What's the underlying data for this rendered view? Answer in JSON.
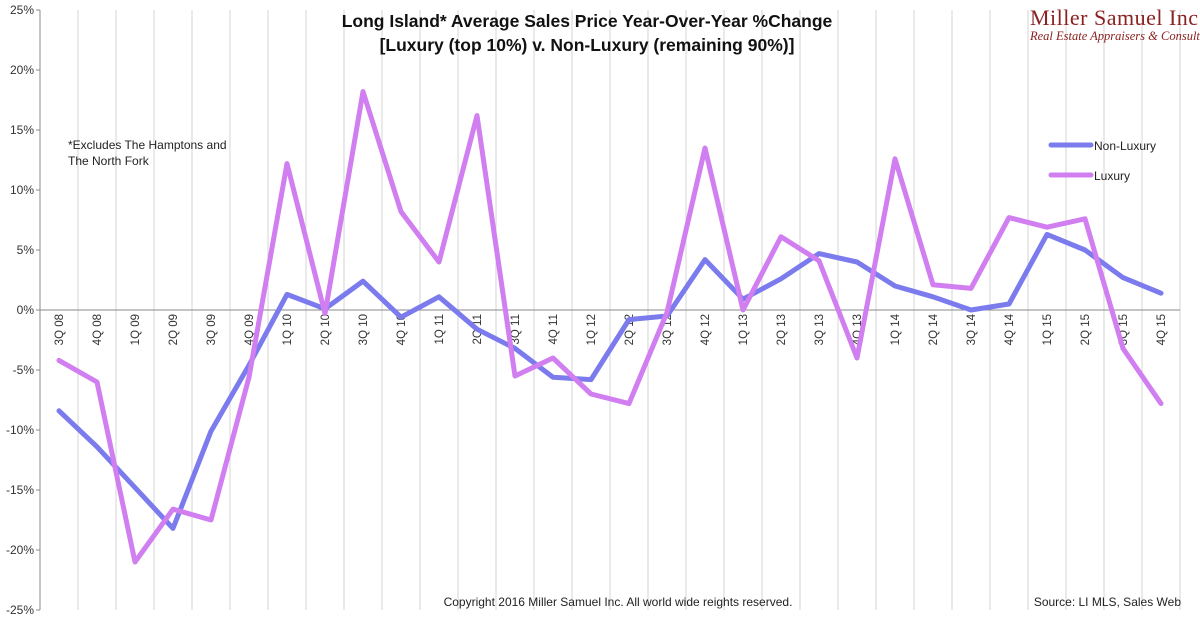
{
  "chart_data": {
    "type": "line",
    "title": "Long Island* Average Sales Price Year-Over-Year %Change",
    "subtitle": "[Luxury (top 10%) v. Non-Luxury (remaining 90%)]",
    "xlabel": "",
    "ylabel": "",
    "ylim": [
      -25,
      25
    ],
    "yticks": [
      -25,
      -20,
      -15,
      -10,
      -5,
      0,
      5,
      10,
      15,
      20,
      25
    ],
    "ytick_labels": [
      "-25%",
      "-20%",
      "-15%",
      "-10%",
      "-5%",
      "0%",
      "5%",
      "10%",
      "15%",
      "20%",
      "25%"
    ],
    "grid": "vertical",
    "legend_position": "top-right",
    "categories": [
      "3Q 08",
      "4Q 08",
      "1Q 09",
      "2Q 09",
      "3Q 09",
      "4Q 09",
      "1Q 10",
      "2Q 10",
      "3Q 10",
      "4Q 10",
      "1Q 11",
      "2Q 11",
      "3Q 11",
      "4Q 11",
      "1Q 12",
      "2Q 12",
      "3Q 12",
      "4Q 12",
      "1Q 13",
      "2Q 13",
      "3Q 13",
      "4Q 13",
      "1Q 14",
      "2Q 14",
      "3Q 14",
      "4Q 14",
      "1Q 15",
      "2Q 15",
      "3Q 15",
      "4Q 15"
    ],
    "series": [
      {
        "name": "Non-Luxury",
        "color": "#7b7bee",
        "values": [
          -8.4,
          -11.4,
          -14.8,
          -18.2,
          -10.1,
          -4.6,
          1.3,
          0.1,
          2.4,
          -0.6,
          1.1,
          -1.6,
          -3.2,
          -5.6,
          -5.8,
          -0.8,
          -0.5,
          4.2,
          0.9,
          2.6,
          4.7,
          4.0,
          2.0,
          1.1,
          0.0,
          0.5,
          6.3,
          5.0,
          2.7,
          1.4
        ]
      },
      {
        "name": "Luxury",
        "color": "#d07ef0",
        "values": [
          -4.2,
          -6.0,
          -21.0,
          -16.6,
          -17.5,
          -5.6,
          12.2,
          -0.3,
          18.2,
          8.2,
          4.0,
          16.2,
          -5.5,
          -4.0,
          -7.0,
          -7.8,
          -0.2,
          13.5,
          0.0,
          6.1,
          4.1,
          -4.0,
          12.6,
          2.1,
          1.8,
          7.7,
          6.9,
          7.6,
          -3.2,
          -7.8
        ]
      }
    ],
    "annotations": [
      "*Excludes The Hamptons and",
      "The North Fork"
    ]
  },
  "brand": {
    "name": "Miller Samuel Inc.",
    "tagline": "Real Estate Appraisers & Consultants",
    "color": "#8b2222"
  },
  "footer": {
    "copyright": "Copyright 2016 Miller Samuel Inc.  All world wide reights reserved.",
    "source": "Source: LI MLS, Sales Web"
  }
}
